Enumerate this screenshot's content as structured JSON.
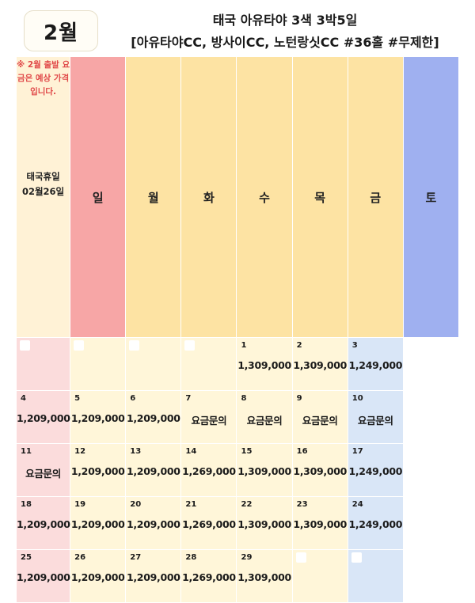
{
  "month": "2월",
  "title": "태국 아유타야 3색 3박5일",
  "subtitle": "[아유타야CC, 방사이CC, 노턴랑싯CC #36홀 #무제한]",
  "weekdays": [
    "일",
    "월",
    "화",
    "수",
    "목",
    "금",
    "토"
  ],
  "side_notice": "※ 2월 출발 요금은 예상 가격 입니다.",
  "side_holiday": "태국휴일 02월26일",
  "weeks": [
    [
      {
        "day": "",
        "price": ""
      },
      {
        "day": "",
        "price": ""
      },
      {
        "day": "",
        "price": ""
      },
      {
        "day": "",
        "price": ""
      },
      {
        "day": "1",
        "price": "1,309,000"
      },
      {
        "day": "2",
        "price": "1,309,000"
      },
      {
        "day": "3",
        "price": "1,249,000"
      }
    ],
    [
      {
        "day": "4",
        "price": "1,209,000"
      },
      {
        "day": "5",
        "price": "1,209,000"
      },
      {
        "day": "6",
        "price": "1,209,000"
      },
      {
        "day": "7",
        "price": "요금문의"
      },
      {
        "day": "8",
        "price": "요금문의"
      },
      {
        "day": "9",
        "price": "요금문의"
      },
      {
        "day": "10",
        "price": "요금문의"
      }
    ],
    [
      {
        "day": "11",
        "price": "요금문의"
      },
      {
        "day": "12",
        "price": "1,209,000"
      },
      {
        "day": "13",
        "price": "1,209,000"
      },
      {
        "day": "14",
        "price": "1,269,000"
      },
      {
        "day": "15",
        "price": "1,309,000"
      },
      {
        "day": "16",
        "price": "1,309,000"
      },
      {
        "day": "17",
        "price": "1,249,000"
      }
    ],
    [
      {
        "day": "18",
        "price": "1,209,000"
      },
      {
        "day": "19",
        "price": "1,209,000"
      },
      {
        "day": "20",
        "price": "1,209,000"
      },
      {
        "day": "21",
        "price": "1,269,000"
      },
      {
        "day": "22",
        "price": "1,309,000"
      },
      {
        "day": "23",
        "price": "1,309,000"
      },
      {
        "day": "24",
        "price": "1,249,000"
      }
    ],
    [
      {
        "day": "25",
        "price": "1,209,000"
      },
      {
        "day": "26",
        "price": "1,209,000"
      },
      {
        "day": "27",
        "price": "1,209,000"
      },
      {
        "day": "28",
        "price": "1,269,000"
      },
      {
        "day": "29",
        "price": "1,309,000"
      },
      {
        "day": "",
        "price": ""
      },
      {
        "day": "",
        "price": ""
      }
    ]
  ],
  "colors": {
    "sunday_header": "#f7a6a6",
    "weekday_header": "#fde3a3",
    "saturday_header": "#9fb0f0",
    "sunday_cell": "#fbdcdc",
    "weekday_cell": "#fff6d9",
    "saturday_cell": "#d9e6f7",
    "notice_text": "#e04848"
  }
}
